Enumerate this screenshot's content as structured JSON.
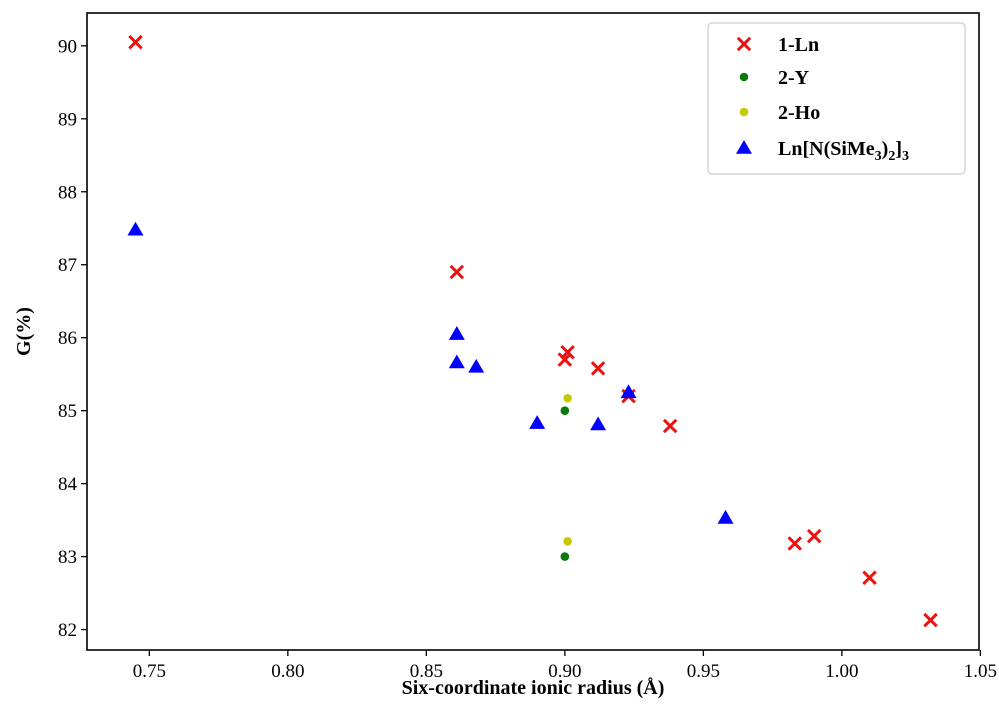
{
  "chart_data": {
    "type": "scatter",
    "xlabel": "Six-coordinate ionic radius (Å)",
    "ylabel": "G(%)",
    "xlim": [
      0.7275,
      1.0495
    ],
    "ylim": [
      81.72,
      90.45
    ],
    "xticks": [
      0.75,
      0.8,
      0.85,
      0.9,
      0.95,
      1.0,
      1.05
    ],
    "xtick_labels": [
      "0.75",
      "0.80",
      "0.85",
      "0.90",
      "0.95",
      "1.00",
      "1.05"
    ],
    "yticks": [
      82,
      83,
      84,
      85,
      86,
      87,
      88,
      89,
      90
    ],
    "ytick_labels": [
      "82",
      "83",
      "84",
      "85",
      "86",
      "87",
      "88",
      "89",
      "90"
    ],
    "grid": false,
    "legend_position": "top-right",
    "series": [
      {
        "name": "1-Ln",
        "marker": "x",
        "color": "#ee1111",
        "points": [
          {
            "x": 0.745,
            "y": 90.05
          },
          {
            "x": 0.861,
            "y": 86.9
          },
          {
            "x": 0.9,
            "y": 85.7
          },
          {
            "x": 0.901,
            "y": 85.8
          },
          {
            "x": 0.912,
            "y": 85.58
          },
          {
            "x": 0.923,
            "y": 85.2
          },
          {
            "x": 0.938,
            "y": 84.79
          },
          {
            "x": 0.983,
            "y": 83.18
          },
          {
            "x": 0.99,
            "y": 83.28
          },
          {
            "x": 1.01,
            "y": 82.71
          },
          {
            "x": 1.032,
            "y": 82.13
          }
        ]
      },
      {
        "name": "2-Y",
        "marker": "circle",
        "color": "#0a7a0a",
        "points": [
          {
            "x": 0.9,
            "y": 85.0
          },
          {
            "x": 0.9,
            "y": 83.0
          }
        ]
      },
      {
        "name": "2-Ho",
        "marker": "circle",
        "color": "#c8c800",
        "points": [
          {
            "x": 0.901,
            "y": 85.17
          },
          {
            "x": 0.901,
            "y": 83.21
          }
        ]
      },
      {
        "name": "Ln[N(SiMe3)2]3",
        "marker": "triangle",
        "color": "#0000ff",
        "points": [
          {
            "x": 0.745,
            "y": 87.48
          },
          {
            "x": 0.861,
            "y": 86.05
          },
          {
            "x": 0.861,
            "y": 85.66
          },
          {
            "x": 0.868,
            "y": 85.6
          },
          {
            "x": 0.89,
            "y": 84.83
          },
          {
            "x": 0.912,
            "y": 84.81
          },
          {
            "x": 0.923,
            "y": 85.25
          },
          {
            "x": 0.958,
            "y": 83.53
          }
        ]
      }
    ]
  }
}
